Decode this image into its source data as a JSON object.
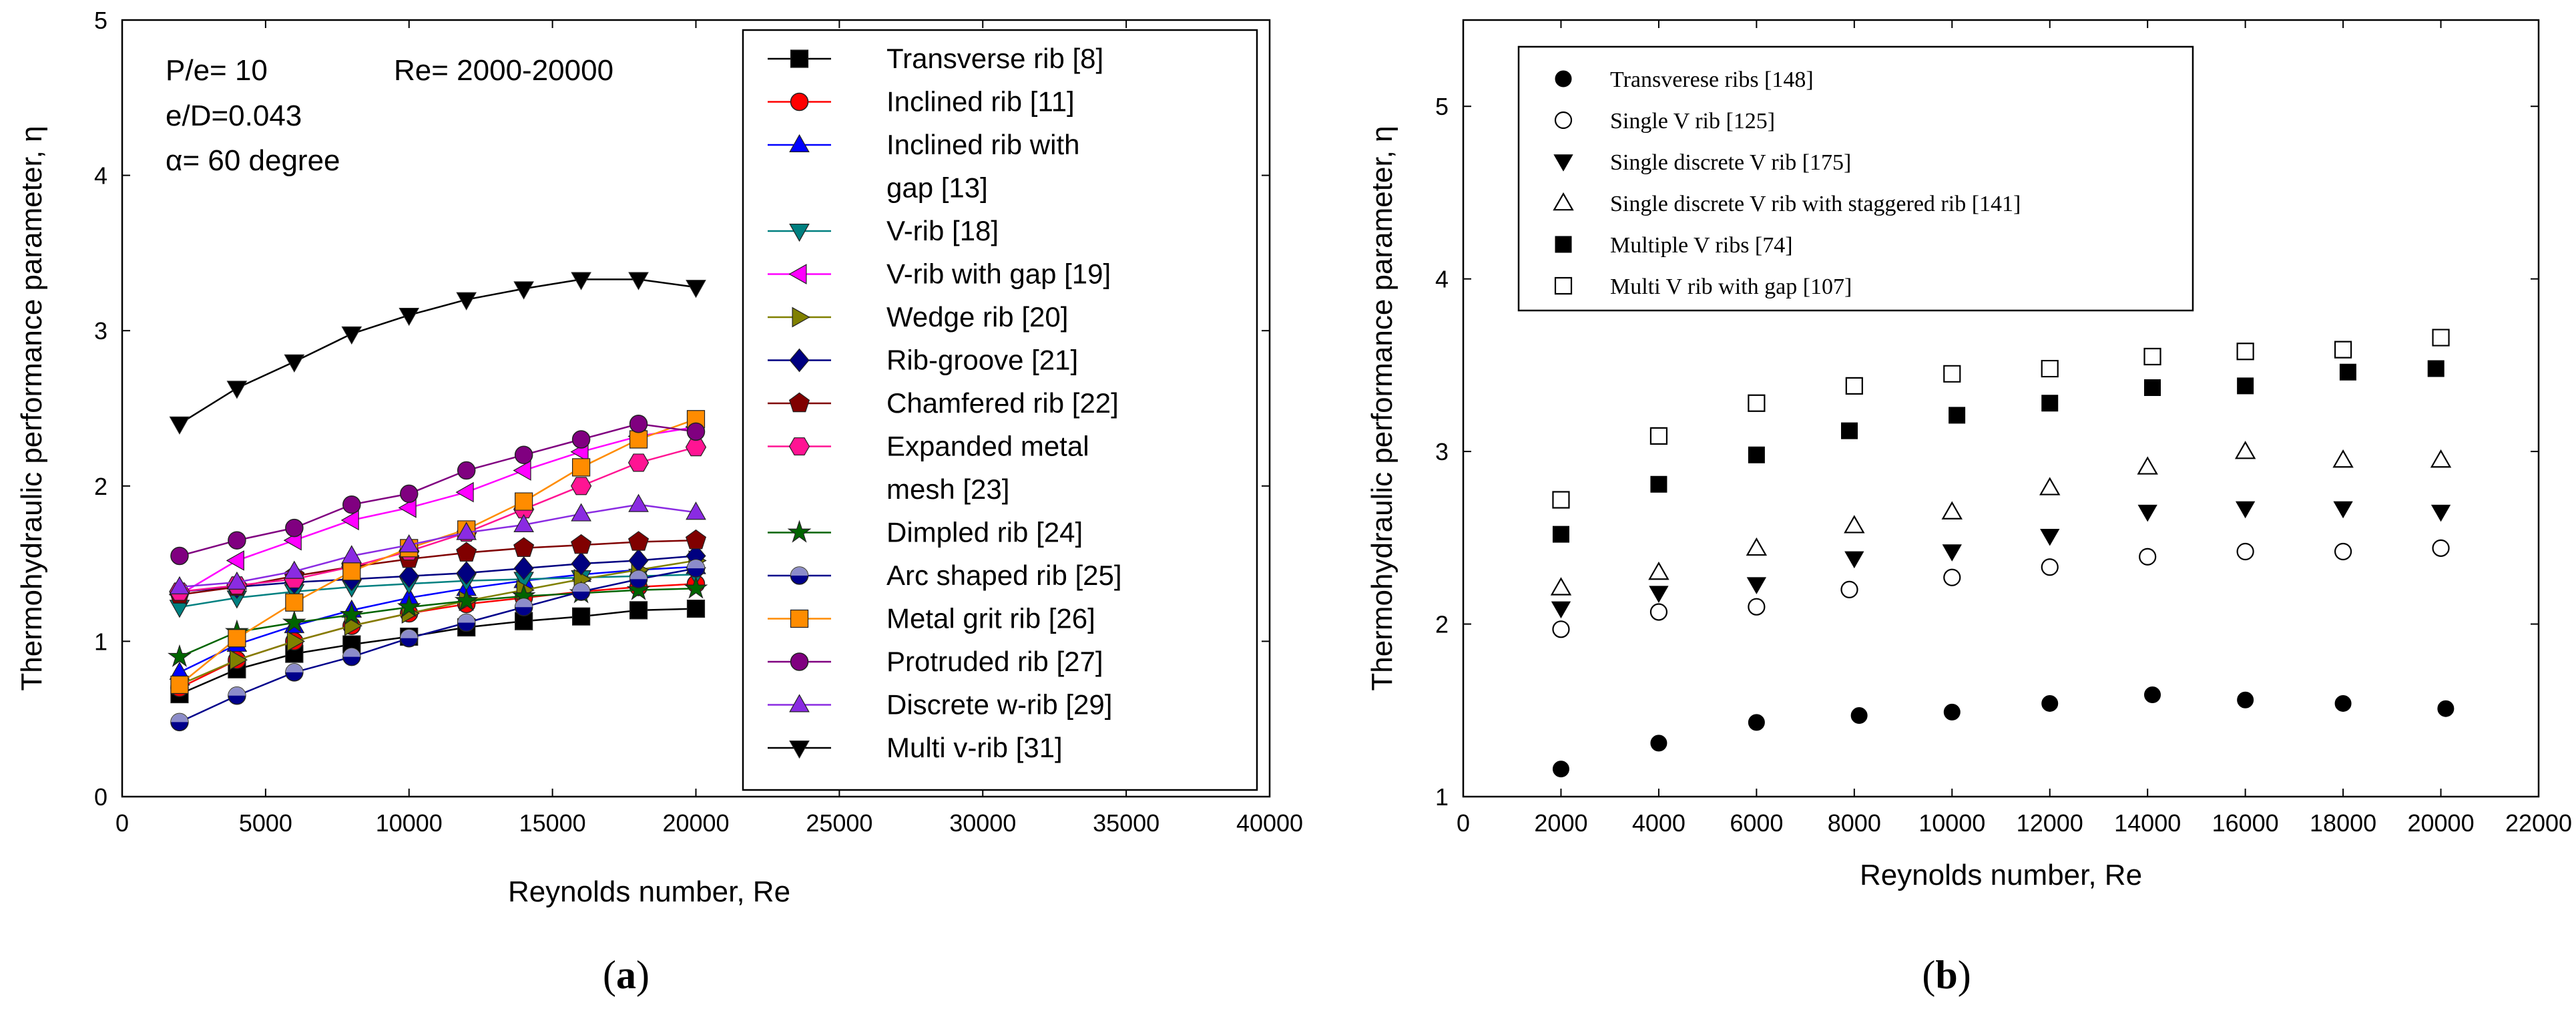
{
  "chart_data": [
    {
      "type": "line",
      "panel_label_open": "(",
      "panel_label": "a",
      "panel_label_close": ")",
      "xlabel": "Reynolds number, Re",
      "ylabel": "Thermohydraulic performance parameter, η",
      "xlim": [
        0,
        40000
      ],
      "ylim": [
        0,
        5
      ],
      "xticks": [
        0,
        5000,
        10000,
        15000,
        20000,
        25000,
        30000,
        35000,
        40000
      ],
      "yticks": [
        0,
        1,
        2,
        3,
        4,
        5
      ],
      "annotations": [
        "P/e= 10",
        "Re= 2000-20000",
        "e/D=0.043",
        "α= 60 degree"
      ],
      "x": [
        2000,
        4000,
        6000,
        8000,
        10000,
        12000,
        14000,
        16000,
        18000,
        20000
      ],
      "series": [
        {
          "name": "Transverse rib [8]",
          "color": "#000000",
          "marker": "square",
          "values": [
            0.66,
            0.82,
            0.92,
            0.98,
            1.03,
            1.09,
            1.13,
            1.16,
            1.2,
            1.21
          ]
        },
        {
          "name": "Inclined rib [11]",
          "color": "#ff0000",
          "marker": "circle",
          "values": [
            0.7,
            0.88,
            1.0,
            1.1,
            1.18,
            1.24,
            1.28,
            1.32,
            1.35,
            1.37
          ]
        },
        {
          "name": "Inclined rib with gap [13]",
          "color": "#0000ff",
          "marker": "triangle-up",
          "values": [
            0.8,
            0.98,
            1.1,
            1.2,
            1.28,
            1.34,
            1.39,
            1.43,
            1.46,
            1.48
          ]
        },
        {
          "name": "V-rib [18]",
          "color": "#008080",
          "marker": "triangle-down",
          "values": [
            1.22,
            1.28,
            1.32,
            1.35,
            1.37,
            1.39,
            1.4,
            1.41,
            1.42,
            1.43
          ]
        },
        {
          "name": "V-rib with gap [19]",
          "color": "#ff00ff",
          "marker": "triangle-left",
          "values": [
            1.3,
            1.52,
            1.65,
            1.78,
            1.86,
            1.96,
            2.1,
            2.22,
            2.32,
            2.38
          ]
        },
        {
          "name": "Wedge rib [20]",
          "color": "#808000",
          "marker": "triangle-right",
          "values": [
            0.72,
            0.88,
            1.0,
            1.1,
            1.18,
            1.26,
            1.33,
            1.4,
            1.46,
            1.52
          ]
        },
        {
          "name": "Rib-groove [21]",
          "color": "#000080",
          "marker": "diamond",
          "values": [
            1.32,
            1.35,
            1.38,
            1.4,
            1.42,
            1.44,
            1.47,
            1.5,
            1.52,
            1.55
          ]
        },
        {
          "name": "Chamfered rib [22]",
          "color": "#800000",
          "marker": "pentagon",
          "values": [
            1.3,
            1.35,
            1.42,
            1.48,
            1.53,
            1.57,
            1.6,
            1.62,
            1.64,
            1.65
          ]
        },
        {
          "name": "Expanded metal mesh [23]",
          "color": "#ff1493",
          "marker": "hexagon",
          "values": [
            1.32,
            1.36,
            1.4,
            1.48,
            1.58,
            1.7,
            1.85,
            2.0,
            2.15,
            2.25
          ]
        },
        {
          "name": "Dimpled rib [24]",
          "color": "#006400",
          "marker": "star",
          "values": [
            0.9,
            1.06,
            1.12,
            1.17,
            1.22,
            1.26,
            1.29,
            1.31,
            1.33,
            1.34
          ]
        },
        {
          "name": "Arc shaped rib [25]",
          "color": "#00008b",
          "marker": "circle-half",
          "values": [
            0.48,
            0.65,
            0.8,
            0.9,
            1.02,
            1.12,
            1.22,
            1.32,
            1.4,
            1.47
          ]
        },
        {
          "name": "Metal grit rib [26]",
          "color": "#ff8c00",
          "marker": "square",
          "values": [
            0.72,
            1.02,
            1.25,
            1.45,
            1.6,
            1.72,
            1.9,
            2.12,
            2.3,
            2.43
          ]
        },
        {
          "name": "Protruded rib [27]",
          "color": "#800080",
          "marker": "circle",
          "values": [
            1.55,
            1.65,
            1.73,
            1.88,
            1.95,
            2.1,
            2.2,
            2.3,
            2.4,
            2.35
          ]
        },
        {
          "name": "Discrete w-rib [29]",
          "color": "#8a2be2",
          "marker": "triangle-up",
          "values": [
            1.35,
            1.38,
            1.45,
            1.55,
            1.62,
            1.7,
            1.75,
            1.82,
            1.88,
            1.83
          ]
        },
        {
          "name": "Multi v-rib [31]",
          "color": "#000000",
          "marker": "triangle-down",
          "values": [
            2.4,
            2.63,
            2.8,
            2.98,
            3.1,
            3.2,
            3.27,
            3.33,
            3.33,
            3.28
          ]
        }
      ],
      "legend_lines": [
        [
          "Transverse rib [8]"
        ],
        [
          "Inclined rib [11]"
        ],
        [
          "Inclined rib with",
          "gap [13]"
        ],
        [
          "V-rib [18]"
        ],
        [
          "V-rib with gap [19]"
        ],
        [
          "Wedge rib [20]"
        ],
        [
          "Rib-groove [21]"
        ],
        [
          "Chamfered rib [22]"
        ],
        [
          "Expanded metal",
          "mesh [23]"
        ],
        [
          "Dimpled rib [24]"
        ],
        [
          "Arc shaped rib [25]"
        ],
        [
          "Metal grit rib [26]"
        ],
        [
          "Protruded rib [27]"
        ],
        [
          "Discrete w-rib [29]"
        ],
        [
          "Multi v-rib [31]"
        ]
      ]
    },
    {
      "type": "scatter",
      "panel_label_open": "(",
      "panel_label": "b",
      "panel_label_close": ")",
      "xlabel": "Reynolds number, Re",
      "ylabel": "Thermohydraulic performance parameter, η",
      "xlim": [
        0,
        22000
      ],
      "ylim": [
        1,
        5.5
      ],
      "xticks": [
        0,
        2000,
        4000,
        6000,
        8000,
        10000,
        12000,
        14000,
        16000,
        18000,
        20000,
        22000
      ],
      "yticks": [
        1,
        2,
        3,
        4,
        5
      ],
      "series": [
        {
          "name": "Transverese ribs [148]",
          "marker": "circle-filled",
          "x": [
            2000,
            4000,
            6000,
            8100,
            10000,
            12000,
            14100,
            16000,
            18000,
            20100
          ],
          "values": [
            1.16,
            1.31,
            1.43,
            1.47,
            1.49,
            1.54,
            1.59,
            1.56,
            1.54,
            1.51
          ]
        },
        {
          "name": "Single V rib [125]",
          "marker": "circle-open",
          "x": [
            2000,
            4000,
            6000,
            7900,
            10000,
            12000,
            14000,
            16000,
            18000,
            20000
          ],
          "values": [
            1.97,
            2.07,
            2.1,
            2.2,
            2.27,
            2.33,
            2.39,
            2.42,
            2.42,
            2.44
          ]
        },
        {
          "name": "Single discrete V rib [175]",
          "marker": "triangle-down-filled",
          "x": [
            2000,
            4000,
            6000,
            8000,
            10000,
            12000,
            14000,
            16000,
            18000,
            20000
          ],
          "values": [
            2.09,
            2.18,
            2.23,
            2.38,
            2.42,
            2.51,
            2.65,
            2.67,
            2.67,
            2.65
          ]
        },
        {
          "name": "Single discrete V rib with staggered rib [141]",
          "marker": "triangle-up-open",
          "x": [
            2000,
            4000,
            6000,
            8000,
            10000,
            12000,
            14000,
            16000,
            18000,
            20000
          ],
          "values": [
            2.21,
            2.3,
            2.44,
            2.57,
            2.65,
            2.79,
            2.91,
            3.0,
            2.95,
            2.95
          ]
        },
        {
          "name": "Multiple V ribs [74]",
          "marker": "square-filled",
          "x": [
            2000,
            4000,
            6000,
            7900,
            10100,
            12000,
            14100,
            16000,
            18100,
            19900
          ],
          "values": [
            2.52,
            2.81,
            2.98,
            3.12,
            3.21,
            3.28,
            3.37,
            3.38,
            3.46,
            3.48
          ]
        },
        {
          "name": "Multi V rib with gap [107]",
          "marker": "square-open",
          "x": [
            2000,
            4000,
            6000,
            8000,
            10000,
            12000,
            14100,
            16000,
            18000,
            20000
          ],
          "values": [
            2.72,
            3.09,
            3.28,
            3.38,
            3.45,
            3.48,
            3.55,
            3.58,
            3.59,
            3.66
          ]
        }
      ]
    }
  ]
}
